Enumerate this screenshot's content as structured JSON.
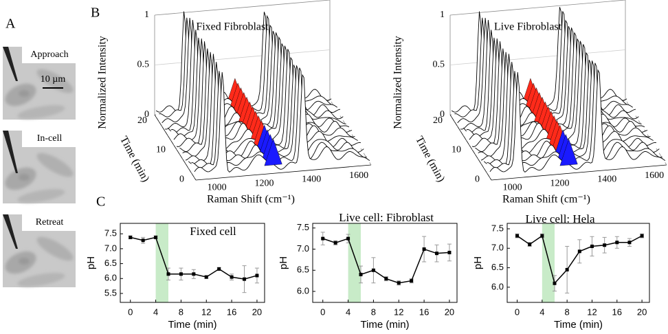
{
  "figure": {
    "panel_labels": [
      "A",
      "B",
      "C"
    ],
    "micrographs": [
      "Approach",
      "In-cell",
      "Retreat"
    ],
    "scale_bar": "10 µm",
    "spectra": [
      {
        "title": "Fixed Fibroblast",
        "y_label": "Normalized Intensity",
        "x_label": "Raman Shift (cm⁻¹)",
        "z_label": "Time (min)",
        "intensity_ticks": [
          "0",
          "0.5",
          "1"
        ],
        "raman_ticks": [
          "1000",
          "1200",
          "1400",
          "1600"
        ],
        "time_ticks": [
          "0",
          "10",
          "20"
        ]
      },
      {
        "title": "Live Fibroblast",
        "y_label": "Normalized Intensity",
        "x_label": "Raman Shift (cm⁻¹)",
        "z_label": "Time (min)",
        "intensity_ticks": [
          "0",
          "0.5",
          "1"
        ],
        "raman_ticks": [
          "1000",
          "1200",
          "1400",
          "1600"
        ],
        "time_ticks": [
          "0",
          "10",
          "20"
        ]
      }
    ]
  },
  "chart_data": [
    {
      "type": "line",
      "title": "Fixed cell",
      "x_label": "Time (min)",
      "y_label": "pH",
      "x": [
        0,
        2,
        4,
        6,
        8,
        10,
        12,
        14,
        16,
        18,
        20
      ],
      "values": [
        7.38,
        7.28,
        7.38,
        6.15,
        6.15,
        6.15,
        6.05,
        6.32,
        6.05,
        5.98,
        6.1
      ],
      "errors": [
        0.05,
        0.1,
        0.05,
        0.2,
        0.2,
        0.15,
        0.05,
        0.05,
        0.1,
        0.45,
        0.25
      ],
      "color": "#000000",
      "error_color": "#999999",
      "highlight": [
        4,
        6
      ],
      "highlight_color": "#c8ebc8",
      "xlim": [
        -1.6,
        21.2
      ],
      "xticks": [
        0,
        4,
        8,
        12,
        16,
        20
      ],
      "ylim": [
        5.2,
        7.85
      ],
      "yticks": [
        5.5,
        {
          "value": 6,
          "label": "6.0"
        },
        6.5,
        {
          "value": 7,
          "label": "7.0"
        },
        7.5
      ]
    },
    {
      "type": "line",
      "title": "Live cell: Fibroblast",
      "x_label": "Time (min)",
      "y_label": "pH",
      "x": [
        0,
        2,
        4,
        6,
        8,
        10,
        12,
        14,
        16,
        18,
        20
      ],
      "values": [
        7.25,
        7.15,
        7.25,
        6.4,
        6.5,
        6.3,
        6.2,
        6.25,
        7.0,
        6.9,
        6.92
      ],
      "errors": [
        0.15,
        0.05,
        0.1,
        0.2,
        0.3,
        0.05,
        0.05,
        0.05,
        0.3,
        0.2,
        0.2
      ],
      "color": "#000000",
      "error_color": "#999999",
      "highlight": [
        4,
        6
      ],
      "highlight_color": "#c8ebc8",
      "xlim": [
        -1.6,
        21.2
      ],
      "xticks": [
        0,
        4,
        8,
        12,
        16,
        20
      ],
      "ylim": [
        5.74,
        7.61
      ],
      "yticks": [
        {
          "value": 6,
          "label": "6.0"
        },
        6.5,
        {
          "value": 7,
          "label": "7.0"
        },
        7.5
      ]
    },
    {
      "type": "line",
      "title": "Live cell: Hela",
      "x_label": "Time (min)",
      "y_label": "pH",
      "x": [
        0,
        2,
        4,
        6,
        8,
        10,
        12,
        14,
        16,
        18,
        20
      ],
      "values": [
        7.32,
        7.1,
        7.32,
        6.1,
        6.45,
        6.92,
        7.05,
        7.08,
        7.15,
        7.15,
        7.32
      ],
      "errors": [
        0.05,
        0.05,
        0.05,
        0.2,
        0.6,
        0.3,
        0.25,
        0.2,
        0.15,
        0.1,
        0.05
      ],
      "color": "#000000",
      "error_color": "#999999",
      "highlight": [
        4,
        6
      ],
      "highlight_color": "#c8ebc8",
      "xlim": [
        -1.6,
        21.2
      ],
      "xticks": [
        0,
        4,
        8,
        12,
        16,
        20
      ],
      "ylim": [
        5.61,
        7.64
      ],
      "yticks": [
        {
          "value": 6,
          "label": "6.0"
        },
        6.5,
        {
          "value": 7,
          "label": "7.0"
        },
        7.5
      ]
    }
  ]
}
